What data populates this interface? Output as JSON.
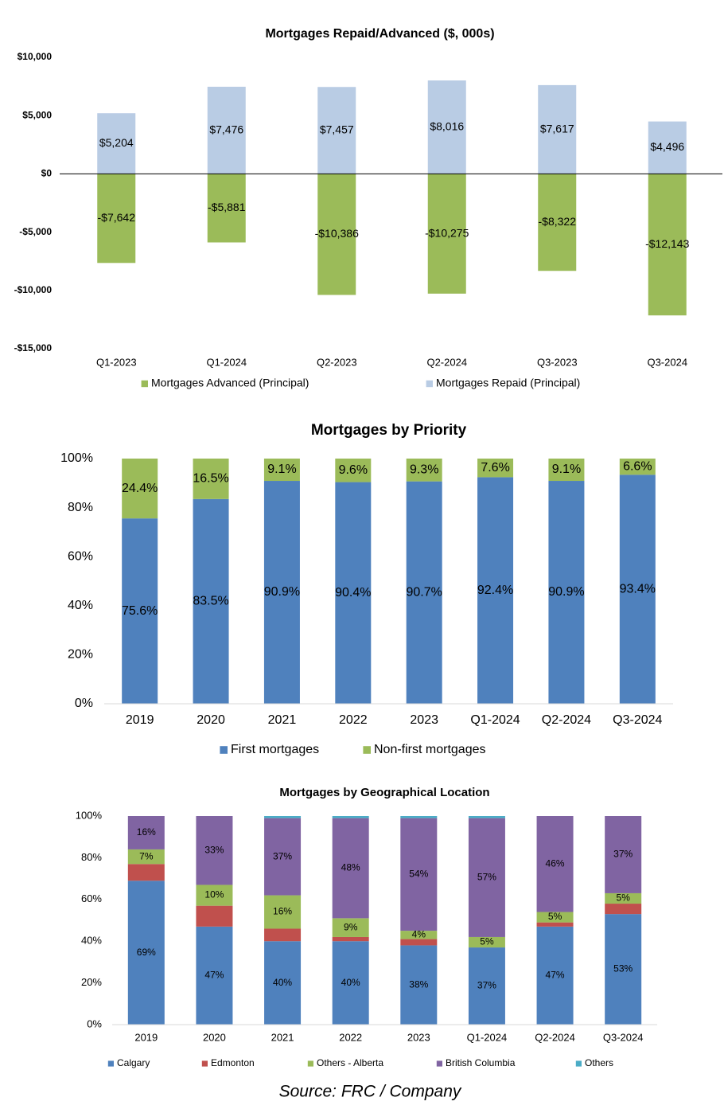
{
  "chart_data": [
    {
      "type": "bar",
      "stacked": true,
      "title": "Mortgages Repaid/Advanced ($, 000s)",
      "categories": [
        "Q1-2023",
        "Q1-2024",
        "Q2-2023",
        "Q2-2024",
        "Q3-2023",
        "Q3-2024"
      ],
      "series": [
        {
          "name": "Mortgages Advanced (Principal)",
          "color": "#9bbb59",
          "values": [
            -7642,
            -5881,
            -10386,
            -10275,
            -8322,
            -12143
          ],
          "value_labels": [
            "-$7,642",
            "-$5,881",
            "-$10,386",
            "-$10,275",
            "-$8,322",
            "-$12,143"
          ]
        },
        {
          "name": "Mortgages Repaid (Principal)",
          "color": "#b9cce4",
          "values": [
            5204,
            7476,
            7457,
            8016,
            7617,
            4496
          ],
          "value_labels": [
            "$5,204",
            "$7,476",
            "$7,457",
            "$8,016",
            "$7,617",
            "$4,496"
          ]
        }
      ],
      "ylim": [
        -15000,
        10000
      ],
      "yticks": [
        {
          "value": -15000,
          "label": "-$15,000"
        },
        {
          "value": -10000,
          "label": "-$10,000"
        },
        {
          "value": -5000,
          "label": "-$5,000"
        },
        {
          "value": 0,
          "label": "$0"
        },
        {
          "value": 5000,
          "label": "$5,000"
        },
        {
          "value": 10000,
          "label": "$10,000"
        }
      ],
      "grid": false
    },
    {
      "type": "bar",
      "stacked": true,
      "title": "Mortgages by Priority",
      "categories": [
        "2019",
        "2020",
        "2021",
        "2022",
        "2023",
        "Q1-2024",
        "Q2-2024",
        "Q3-2024"
      ],
      "series": [
        {
          "name": "First mortgages",
          "color": "#4f81bd",
          "values": [
            75.6,
            83.5,
            90.9,
            90.4,
            90.7,
            92.4,
            90.9,
            93.4
          ],
          "value_labels": [
            "75.6%",
            "83.5%",
            "90.9%",
            "90.4%",
            "90.7%",
            "92.4%",
            "90.9%",
            "93.4%"
          ]
        },
        {
          "name": "Non-first mortgages",
          "color": "#9bbb59",
          "values": [
            24.4,
            16.5,
            9.1,
            9.6,
            9.3,
            7.6,
            9.1,
            6.6
          ],
          "value_labels": [
            "24.4%",
            "16.5%",
            "9.1%",
            "9.6%",
            "9.3%",
            "7.6%",
            "9.1%",
            "6.6%"
          ]
        }
      ],
      "ylim": [
        0,
        100
      ],
      "yticks": [
        {
          "value": 0,
          "label": "0%"
        },
        {
          "value": 20,
          "label": "20%"
        },
        {
          "value": 40,
          "label": "40%"
        },
        {
          "value": 60,
          "label": "60%"
        },
        {
          "value": 80,
          "label": "80%"
        },
        {
          "value": 100,
          "label": "100%"
        }
      ],
      "grid": false
    },
    {
      "type": "bar",
      "stacked": true,
      "title": "Mortgages by Geographical Location",
      "categories": [
        "2019",
        "2020",
        "2021",
        "2022",
        "2023",
        "Q1-2024",
        "Q2-2024",
        "Q3-2024"
      ],
      "series": [
        {
          "name": "Calgary",
          "color": "#4f81bd",
          "values": [
            69,
            47,
            40,
            40,
            38,
            37,
            47,
            53
          ],
          "value_labels": [
            "69%",
            "47%",
            "40%",
            "40%",
            "38%",
            "37%",
            "47%",
            "53%"
          ]
        },
        {
          "name": "Edmonton",
          "color": "#c0504d",
          "values": [
            8,
            10,
            6,
            2,
            3,
            0,
            2,
            5
          ]
        },
        {
          "name": "Others - Alberta",
          "color": "#9bbb59",
          "values": [
            7,
            10,
            16,
            9,
            4,
            5,
            5,
            5
          ],
          "value_labels": [
            "7%",
            "10%",
            "16%",
            "9%",
            "4%",
            "5%",
            "5%",
            "5%"
          ]
        },
        {
          "name": "British Columbia",
          "color": "#8064a2",
          "values": [
            16,
            33,
            37,
            48,
            54,
            57,
            46,
            37
          ],
          "value_labels": [
            "16%",
            "33%",
            "37%",
            "48%",
            "54%",
            "57%",
            "46%",
            "37%"
          ]
        },
        {
          "name": "Others",
          "color": "#4bacc6",
          "values": [
            0,
            0,
            1,
            1,
            1,
            1,
            0,
            0
          ]
        }
      ],
      "ylim": [
        0,
        100
      ],
      "yticks": [
        {
          "value": 0,
          "label": "0%"
        },
        {
          "value": 20,
          "label": "20%"
        },
        {
          "value": 40,
          "label": "40%"
        },
        {
          "value": 60,
          "label": "60%"
        },
        {
          "value": 80,
          "label": "80%"
        },
        {
          "value": 100,
          "label": "100%"
        }
      ],
      "grid": false
    }
  ],
  "source": "Source: FRC / Company"
}
